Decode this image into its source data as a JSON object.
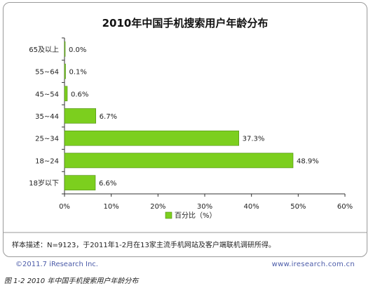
{
  "chart_data": {
    "type": "bar",
    "orientation": "horizontal",
    "title": "2010年中国手机搜索用户年龄分布",
    "categories": [
      "65及以上",
      "55~64",
      "45~54",
      "35~44",
      "25~34",
      "18~24",
      "18岁以下"
    ],
    "values": [
      0.0,
      0.1,
      0.6,
      6.7,
      37.3,
      48.9,
      6.6
    ],
    "value_labels": [
      "0.0%",
      "0.1%",
      "0.6%",
      "6.7%",
      "37.3%",
      "48.9%",
      "6.6%"
    ],
    "xlim": [
      0,
      60
    ],
    "xticks": [
      "0%",
      "10%",
      "20%",
      "30%",
      "40%",
      "50%",
      "60%"
    ],
    "legend": "百分比（%）",
    "legend_position": "bottom-center",
    "grid": false,
    "bar_color": "#7ccf1e"
  },
  "note": "样本描述：N=9123，于2011年1-2月在13家主流手机网站及客户端联机调研所得。",
  "footer": {
    "left": "©2011.7 iResearch Inc.",
    "right": "www.iresearch.com.cn"
  },
  "caption": "图 1-2 2010 年中国手机搜索用户年龄分布"
}
